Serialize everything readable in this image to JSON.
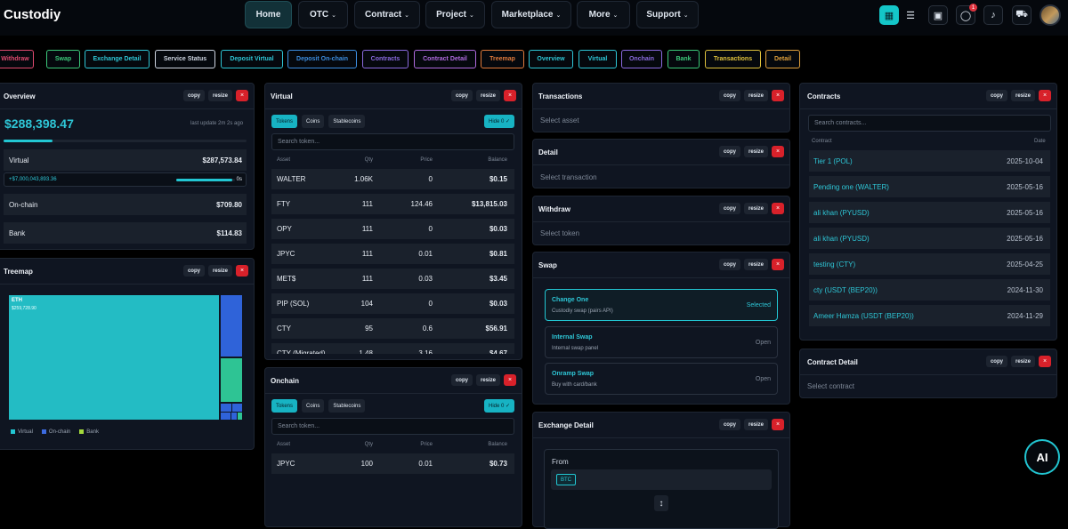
{
  "app": {
    "title": "Custodiy"
  },
  "nav": {
    "home": "Home",
    "otc": "OTC",
    "contract": "Contract",
    "project": "Project",
    "marketplace": "Marketplace",
    "more": "More",
    "support": "Support",
    "notif_count": "1"
  },
  "chips": [
    "Withdraw",
    "Swap",
    "Exchange Detail",
    "Service Status",
    "Deposit Virtual",
    "Deposit On-chain",
    "Contracts",
    "Contract Detail",
    "Treemap",
    "Overview",
    "Virtual",
    "Onchain",
    "Bank",
    "Transactions",
    "Detail"
  ],
  "chip_colors": [
    "#e04a6f",
    "#3cc97a",
    "#2ec6d6",
    "#cfd6e2",
    "#2ec6d6",
    "#3c8de0",
    "#8a6be0",
    "#b06be0",
    "#e07a3c",
    "#2ec6d6",
    "#2ec6d6",
    "#8a6be0",
    "#3cc97a",
    "#e0c23c",
    "#e0a03c"
  ],
  "common": {
    "copy": "copy",
    "resize": "resize",
    "close": "×"
  },
  "overview": {
    "title": "Overview",
    "total": "$288,398.47",
    "updated": "last update 2m 2s ago",
    "progress": 0.2,
    "virtual_label": "Virtual",
    "virtual_value": "$287,573.84",
    "sub_value": "+$7,000,043,893.36",
    "sub_fill": 0.95,
    "sub_tag": "0s",
    "onchain_label": "On-chain",
    "onchain_value": "$709.80",
    "bank_label": "Bank",
    "bank_value": "$114.83"
  },
  "treemap": {
    "title": "Treemap",
    "main_label": "ETH",
    "main_value": "$259,728.90",
    "legend": [
      "Virtual",
      "On-chain",
      "Bank"
    ],
    "legend_colors": [
      "#22c6d2",
      "#3c6be0",
      "#a3d93c"
    ]
  },
  "virtual": {
    "title": "Virtual",
    "tabs": [
      "Tokens",
      "Coins",
      "Stablecoins"
    ],
    "hide": "Hide 0 ✓",
    "search_placeholder": "Search token...",
    "columns": [
      "Asset",
      "Qty",
      "Price",
      "Balance"
    ],
    "rows": [
      [
        "WALTER",
        "1.06K",
        "0",
        "$0.15"
      ],
      [
        "FTY",
        "111",
        "124.46",
        "$13,815.03"
      ],
      [
        "OPY",
        "111",
        "0",
        "$0.03"
      ],
      [
        "JPYC",
        "111",
        "0.01",
        "$0.81"
      ],
      [
        "MET$",
        "111",
        "0.03",
        "$3.45"
      ],
      [
        "PIP (SOL)",
        "104",
        "0",
        "$0.03"
      ],
      [
        "CTY",
        "95",
        "0.6",
        "$56.91"
      ],
      [
        "CTY (Migrated)",
        "1.48",
        "3.16",
        "$4.67"
      ]
    ]
  },
  "onchain": {
    "title": "Onchain",
    "tabs": [
      "Tokens",
      "Coins",
      "Stablecoins"
    ],
    "hide": "Hide 0 ✓",
    "search_placeholder": "Search token...",
    "columns": [
      "Asset",
      "Qty",
      "Price",
      "Balance"
    ],
    "rows": [
      [
        "JPYC",
        "100",
        "0.01",
        "$0.73"
      ]
    ]
  },
  "transactions": {
    "title": "Transactions",
    "hint": "Select asset"
  },
  "detail": {
    "title": "Detail",
    "hint": "Select transaction"
  },
  "withdraw": {
    "title": "Withdraw",
    "hint": "Select token"
  },
  "swap": {
    "title": "Swap",
    "cards": [
      {
        "title": "Change One",
        "sub": "Custodiy swap (pairs API)",
        "status": "Selected"
      },
      {
        "title": "Internal Swap",
        "sub": "Internal swap panel",
        "status": "Open"
      },
      {
        "title": "Onramp Swap",
        "sub": "Buy with card/bank",
        "status": "Open"
      }
    ]
  },
  "exchange": {
    "title": "Exchange Detail",
    "from_label": "From",
    "from_token": "BTC",
    "swap_icon": "↕"
  },
  "contracts": {
    "title": "Contracts",
    "search_placeholder": "Search contracts...",
    "col_contract": "Contract",
    "col_date": "Date",
    "rows": [
      [
        "Tier 1 (POL)",
        "2025-10-04"
      ],
      [
        "Pending one (WALTER)",
        "2025-05-16"
      ],
      [
        "ali khan (PYUSD)",
        "2025-05-16"
      ],
      [
        "ali khan (PYUSD)",
        "2025-05-16"
      ],
      [
        "testing (CTY)",
        "2025-04-25"
      ],
      [
        "cty (USDT (BEP20))",
        "2024-11-30"
      ],
      [
        "Ameer Hamza (USDT (BEP20))",
        "2024-11-29"
      ]
    ]
  },
  "contract_detail": {
    "title": "Contract Detail",
    "hint": "Select contract"
  },
  "ai": {
    "label": "AI"
  }
}
